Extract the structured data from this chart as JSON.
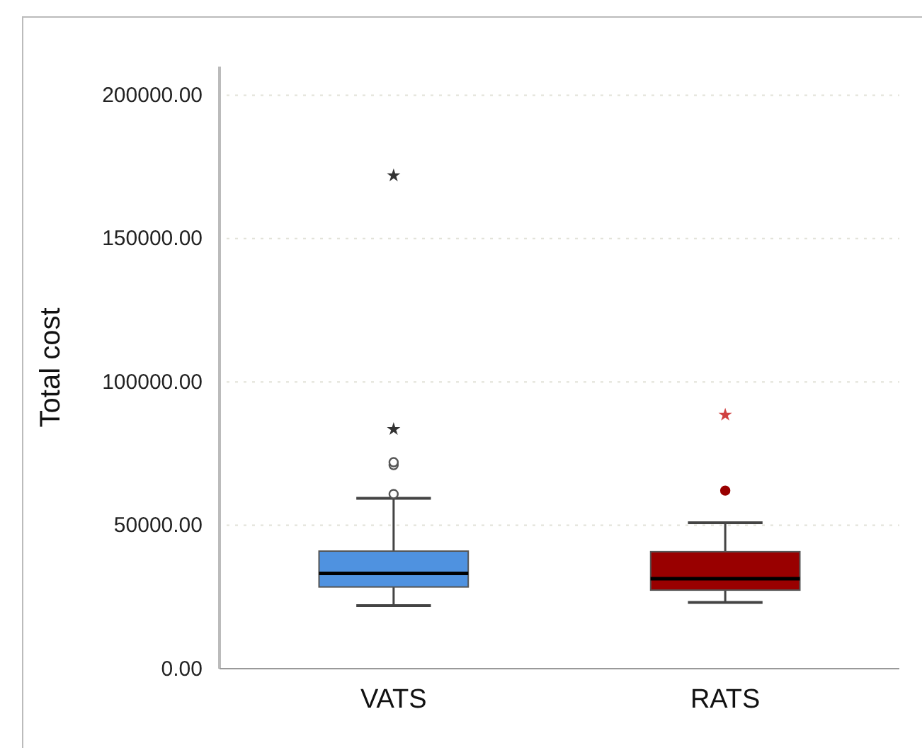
{
  "chart_data": {
    "type": "box",
    "ylabel": "Total cost",
    "categories": [
      "VATS",
      "RATS"
    ],
    "colors": [
      "#4f92e0",
      "#990000"
    ],
    "boxes": [
      {
        "low": 22000,
        "q1": 28500,
        "median": 33200,
        "q3": 41000,
        "high": 59400,
        "outliers": [
          60900,
          71000,
          72000,
          83500,
          172000
        ]
      },
      {
        "low": 23100,
        "q1": 27400,
        "median": 31400,
        "q3": 40800,
        "high": 50900,
        "outliers": [
          62100,
          88500
        ]
      }
    ],
    "ylim": [
      0,
      210000
    ],
    "yticks": [
      {
        "value": 0,
        "label": "0.00"
      },
      {
        "value": 50000,
        "label": "50000.00"
      },
      {
        "value": 100000,
        "label": "100000.00"
      },
      {
        "value": 150000,
        "label": "150000.00"
      },
      {
        "value": 200000,
        "label": "200000.00"
      }
    ],
    "grid": "y"
  }
}
